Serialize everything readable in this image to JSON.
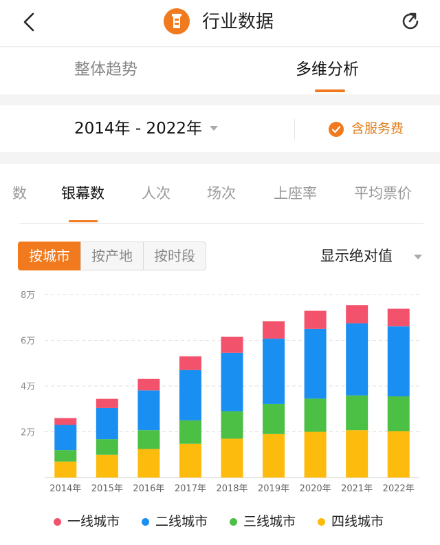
{
  "header": {
    "title": "行业数据",
    "back_icon": "chevron-left-icon",
    "refresh_icon": "refresh-icon",
    "logo_icon": "lighthouse-logo-icon"
  },
  "main_tabs": [
    {
      "label": "整体趋势"
    },
    {
      "label": "多维分析"
    }
  ],
  "filter": {
    "year_range": "2014年 - 2022年",
    "service_label": "含服务费"
  },
  "metric_tabs": [
    {
      "label": "数"
    },
    {
      "label": "银幕数"
    },
    {
      "label": "人次"
    },
    {
      "label": "场次"
    },
    {
      "label": "上座率"
    },
    {
      "label": "平均票价"
    }
  ],
  "segments": [
    {
      "label": "按城市"
    },
    {
      "label": "按产地"
    },
    {
      "label": "按时段"
    }
  ],
  "mode_select": {
    "value": "显示绝对值"
  },
  "colors": {
    "accent": "#f07a1d",
    "tier1": "#f2526b",
    "tier2": "#1a8ff2",
    "tier3": "#4cbf45",
    "tier4": "#fdbb0e"
  },
  "chart_data": {
    "type": "bar",
    "stacked": true,
    "categories": [
      "2014年",
      "2015年",
      "2016年",
      "2017年",
      "2018年",
      "2019年",
      "2020年",
      "2021年",
      "2022年"
    ],
    "y_ticks": [
      {
        "value": 20000,
        "label": "2万"
      },
      {
        "value": 40000,
        "label": "4万"
      },
      {
        "value": 60000,
        "label": "6万"
      },
      {
        "value": 80000,
        "label": "8万"
      }
    ],
    "ylim": [
      0,
      80000
    ],
    "grid": true,
    "legend_position": "bottom",
    "series": [
      {
        "name": "四线城市",
        "color": "#fdbb0e",
        "values": [
          7000,
          10000,
          12500,
          14800,
          17000,
          19000,
          20000,
          20700,
          20300
        ]
      },
      {
        "name": "三线城市",
        "color": "#4cbf45",
        "values": [
          5000,
          6800,
          8200,
          10200,
          12000,
          13200,
          14500,
          15200,
          15200
        ]
      },
      {
        "name": "二线城市",
        "color": "#1a8ff2",
        "values": [
          11000,
          13600,
          17400,
          22000,
          25500,
          28500,
          30500,
          31500,
          30600
        ]
      },
      {
        "name": "一线城市",
        "color": "#f2526b",
        "values": [
          3000,
          4000,
          5000,
          6000,
          7000,
          7600,
          7900,
          8000,
          7700
        ]
      }
    ],
    "legend": [
      {
        "name": "一线城市",
        "color": "#f2526b"
      },
      {
        "name": "二线城市",
        "color": "#1a8ff2"
      },
      {
        "name": "三线城市",
        "color": "#4cbf45"
      },
      {
        "name": "四线城市",
        "color": "#fdbb0e"
      }
    ]
  }
}
